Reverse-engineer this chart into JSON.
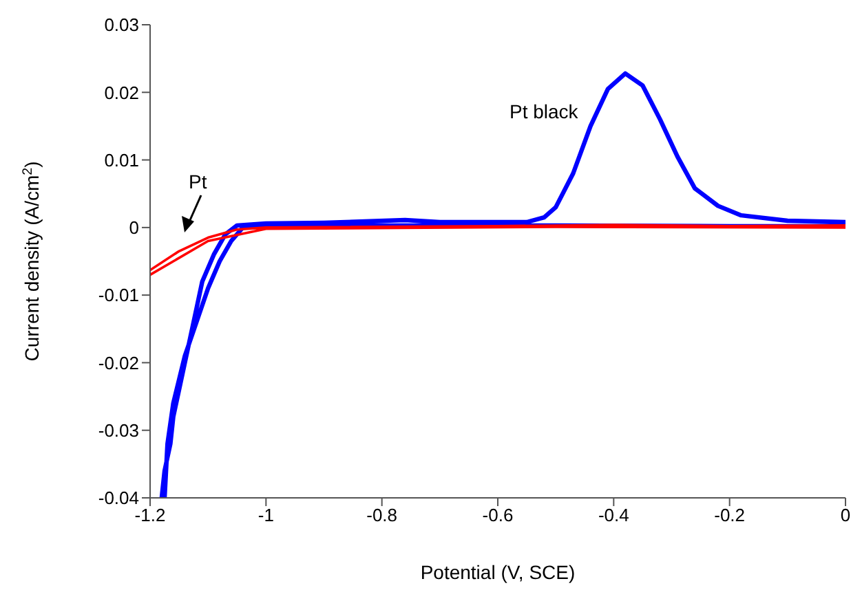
{
  "chart_data": {
    "type": "line",
    "xlabel": "Potential (V, SCE)",
    "ylabel": "Current density (A/cm$^{2}$)",
    "xlim": [
      -1.2,
      0
    ],
    "ylim": [
      -0.04,
      0.03
    ],
    "xticks": [
      -1.2,
      -1,
      -0.8,
      -0.6,
      -0.4,
      -0.2,
      0
    ],
    "yticks": [
      -0.04,
      -0.03,
      -0.02,
      -0.01,
      0,
      0.01,
      0.02,
      0.03
    ],
    "grid": false,
    "legend": false,
    "marker": "none",
    "line_style": "solid",
    "series": [
      {
        "color": "#0000ff",
        "x": [
          -1.18,
          -1.175,
          -1.165,
          -1.16,
          -1.15,
          -1.14,
          -1.13,
          -1.12,
          -1.11,
          -1.09,
          -1.07,
          -1.05,
          -1.0,
          -0.9,
          -0.76,
          -0.7,
          -0.55,
          -0.52,
          -0.5,
          -0.47,
          -0.44,
          -0.41,
          -0.38,
          -0.35,
          -0.32,
          -0.29,
          -0.26,
          -0.22,
          -0.18,
          -0.1,
          0,
          0,
          -0.2,
          -0.5,
          -0.8,
          -1.0,
          -1.04,
          -1.06,
          -1.08,
          -1.1,
          -1.12,
          -1.14,
          -1.16,
          -1.17,
          -1.175
        ],
        "values": [
          -0.04,
          -0.036,
          -0.032,
          -0.028,
          -0.024,
          -0.02,
          -0.016,
          -0.012,
          -0.008,
          -0.004,
          -0.001,
          0.0003,
          0.0006,
          0.0007,
          0.0011,
          0.0008,
          0.0008,
          0.0015,
          0.003,
          0.008,
          0.015,
          0.0205,
          0.0228,
          0.021,
          0.016,
          0.0105,
          0.0058,
          0.0032,
          0.0018,
          0.001,
          0.0008,
          0.0002,
          0.0002,
          0.0003,
          0.0003,
          0.0002,
          0,
          -0.002,
          -0.005,
          -0.009,
          -0.014,
          -0.019,
          -0.026,
          -0.032,
          -0.04
        ]
      },
      {
        "color": "#ff0000",
        "x": [
          -1.2,
          -1.15,
          -1.1,
          -1.05,
          -1.0,
          -0.6,
          -0.4,
          -0.2,
          0,
          0,
          -0.5,
          -1.0,
          -1.1,
          -1.2
        ],
        "values": [
          -0.0063,
          -0.0035,
          -0.0015,
          -0.0003,
          0,
          0.0002,
          0.0004,
          0.0002,
          0.0003,
          0,
          0.0001,
          -0.0002,
          -0.002,
          -0.007
        ]
      }
    ],
    "annotations": [
      "Pt black",
      "Pt"
    ]
  }
}
